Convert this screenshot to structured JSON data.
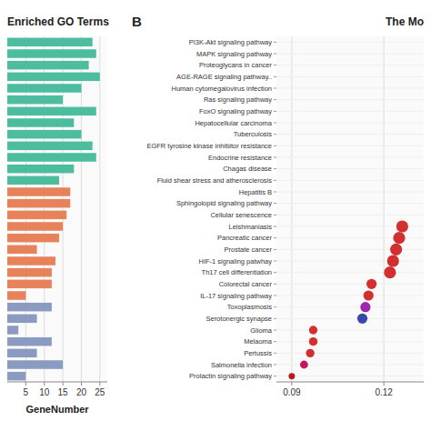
{
  "chart_data": [
    {
      "type": "bar",
      "orientation": "horizontal",
      "title": "Enriched GO Terms",
      "xlabel": "GeneNumber",
      "categories": [
        null,
        null,
        null,
        null,
        null,
        null,
        null,
        null,
        null,
        null,
        null,
        null,
        null,
        null,
        null,
        null,
        null,
        null,
        null,
        null,
        null,
        null,
        null,
        null,
        null,
        null,
        null,
        null,
        null,
        null
      ],
      "values": [
        23,
        24,
        22,
        25,
        20,
        15,
        24,
        18,
        20,
        23,
        24,
        18,
        14,
        17,
        17,
        16,
        15,
        14,
        8,
        13,
        12,
        12,
        5,
        12,
        8,
        3,
        12,
        8,
        15,
        5
      ],
      "colors": [
        "#4DBDA0",
        "#4DBDA0",
        "#4DBDA0",
        "#4DBDA0",
        "#4DBDA0",
        "#4DBDA0",
        "#4DBDA0",
        "#4DBDA0",
        "#4DBDA0",
        "#4DBDA0",
        "#4DBDA0",
        "#4DBDA0",
        "#4DBDA0",
        "#E8825A",
        "#E8825A",
        "#E8825A",
        "#E8825A",
        "#E8825A",
        "#E8825A",
        "#E8825A",
        "#E8825A",
        "#E8825A",
        "#E8825A",
        "#8A9AC0",
        "#8A9AC0",
        "#8A9AC0",
        "#8A9AC0",
        "#8A9AC0",
        "#8A9AC0",
        "#8A9AC0"
      ],
      "xlim": [
        0,
        27
      ],
      "xticks": [
        5,
        10,
        15,
        20,
        25
      ],
      "grid": true,
      "tick_labels": "x"
    },
    {
      "type": "dot",
      "orientation": "horizontal",
      "title": "The Mo",
      "annotation": "B",
      "categories": [
        "PI3K-Akt signaling pathway",
        "MAPK signaling pathway",
        "Proteoglycans in cancer",
        "AGE-RAGE signaling pathway..",
        "Human cytomegalovirus infection",
        "Ras signaling pathway",
        "FoxO signaling pathway",
        "Hepatocellular carcinoma",
        "Tuberculosis",
        "EGFR tyrosine kinase inhibitor resistance",
        "Endocrine resistance",
        "Chagas disease",
        "Fluid shear stress and atherosclerosis",
        "Hepatitis B",
        "Sphingolopid signaling pathway",
        "Cellular senescence",
        "Leishmaniasis",
        "Pancreatic cancer",
        "Prostate cancer",
        "HIF-1 signaling patwhay",
        "Th17 cell differentiation",
        "Colorectal cancer",
        "IL-17 signaling pathway",
        "Toxoplasmosis",
        "Serotonergic synapse",
        "Glioma",
        "Melaoma",
        "Pertussis",
        "Salmonella infection",
        "Prolactin signaling pathway"
      ],
      "values": [
        null,
        null,
        null,
        null,
        null,
        null,
        null,
        null,
        null,
        null,
        null,
        null,
        null,
        null,
        null,
        null,
        0.126,
        0.125,
        0.124,
        0.123,
        0.122,
        0.116,
        0.115,
        0.114,
        0.113,
        0.097,
        0.097,
        0.096,
        0.094,
        0.09
      ],
      "sizes": [
        0,
        0,
        0,
        0,
        0,
        0,
        0,
        0,
        0,
        0,
        0,
        0,
        0,
        0,
        0,
        0,
        90,
        90,
        90,
        90,
        90,
        65,
        65,
        65,
        65,
        45,
        45,
        45,
        40,
        25
      ],
      "colors": [
        null,
        null,
        null,
        null,
        null,
        null,
        null,
        null,
        null,
        null,
        null,
        null,
        null,
        null,
        null,
        null,
        "#D32F2F",
        "#D32F2F",
        "#D32F2F",
        "#D32F2F",
        "#D32F2F",
        "#D32F2F",
        "#D32F2F",
        "#9C27B0",
        "#3949AB",
        "#D32F2F",
        "#D32F2F",
        "#D32F2F",
        "#C2185B",
        "#B71C1C"
      ],
      "xlim": [
        0.085,
        0.133
      ],
      "xticks": [
        0.09,
        0.12
      ],
      "grid": true
    }
  ]
}
